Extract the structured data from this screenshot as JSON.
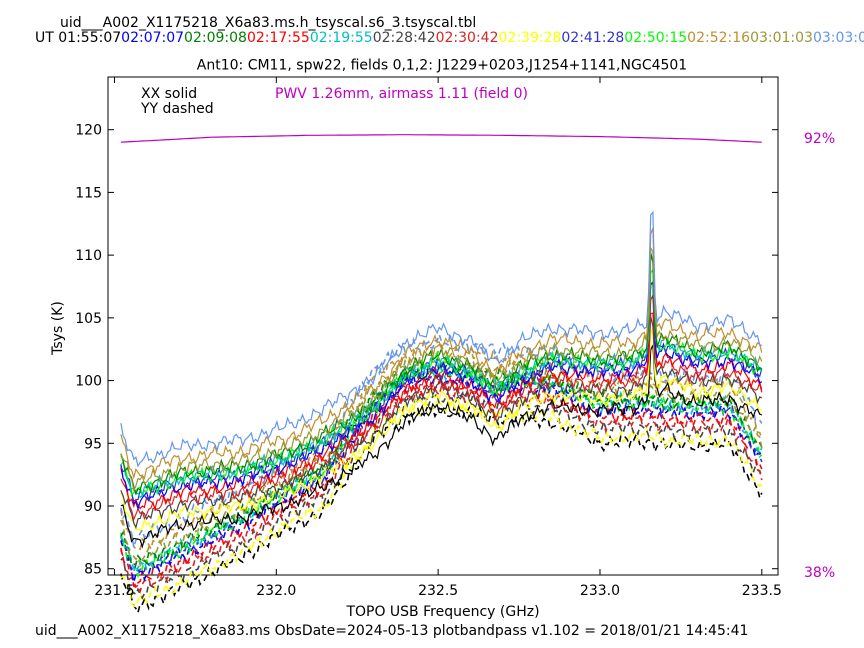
{
  "header": {
    "filename": "uid___A002_X1175218_X6a83.ms.h_tsyscal.s6_3.tsyscal.tbl",
    "ut_prefix": "UT",
    "times": [
      {
        "text": "01:55:07",
        "color": "#000000"
      },
      {
        "text": "02:07:07",
        "color": "#0000ff"
      },
      {
        "text": "02:09:08",
        "color": "#008000"
      },
      {
        "text": "02:17:55",
        "color": "#ff0000"
      },
      {
        "text": "02:19:55",
        "color": "#00bfbf"
      },
      {
        "text": "02:28:42",
        "color": "#444444"
      },
      {
        "text": "02:30:42",
        "color": "#d62728"
      },
      {
        "text": "02:39:28",
        "color": "#ffff00"
      },
      {
        "text": "02:41:28",
        "color": "#3333cc"
      },
      {
        "text": "02:50:15",
        "color": "#00ff00"
      },
      {
        "text": "02:52:16",
        "color": "#bf8f30"
      },
      {
        "text": "03:01:03",
        "color": "#999933"
      },
      {
        "text": "03:03:03",
        "color": "#6495ed"
      }
    ]
  },
  "chart_data": {
    "type": "line",
    "title": "Ant10: CM11,  spw22,  fields 0,1,2: J1229+0203,J1254+1141,NGC4501",
    "xlabel": "TOPO USB Frequency (GHz)",
    "ylabel": "Tsys (K)",
    "xlim": [
      231.48,
      233.55
    ],
    "ylim": [
      84.5,
      124.2
    ],
    "xticks": [
      231.5,
      232.0,
      232.5,
      233.0,
      233.5
    ],
    "xtick_labels": [
      "231.5",
      "232.0",
      "232.5",
      "233.0",
      "233.5"
    ],
    "yticks": [
      85,
      90,
      95,
      100,
      105,
      110,
      115,
      120
    ],
    "ytick_labels": [
      "85",
      "90",
      "95",
      "100",
      "105",
      "110",
      "115",
      "120"
    ],
    "legend": [
      "XX solid",
      "YY dashed"
    ],
    "pwv_label": "PWV 1.26mm, airmass 1.11 (field 0)",
    "pwv_color": "#bf00bf",
    "transmission_axis": {
      "top_label": "92%",
      "bottom_label": "38%"
    },
    "transmission_curve": {
      "x": [
        231.52,
        231.8,
        232.1,
        232.4,
        232.7,
        233.0,
        233.3,
        233.5
      ],
      "y": [
        119.0,
        119.4,
        119.55,
        119.6,
        119.55,
        119.45,
        119.25,
        119.0
      ]
    },
    "spectral_feature": {
      "x": 233.16,
      "solid_peak": 116.3,
      "dashed_peak": 100.9
    },
    "spectrum_shape": {
      "x": [
        231.52,
        231.56,
        231.7,
        231.9,
        232.05,
        232.15,
        232.3,
        232.4,
        232.5,
        232.6,
        232.68,
        232.75,
        232.85,
        233.0,
        233.1,
        233.2,
        233.3,
        233.4,
        233.5
      ],
      "solid": [
        0,
        -2.8,
        -1.5,
        -0.9,
        0.3,
        1.6,
        4.0,
        6.8,
        8.0,
        7.0,
        5.3,
        6.9,
        8.0,
        7.6,
        7.8,
        9.3,
        8.2,
        8.6,
        7.0
      ],
      "dashed": [
        -8.2,
        -11.0,
        -9.4,
        -6.8,
        -4.4,
        -3.2,
        2.6,
        4.4,
        4.8,
        4.5,
        4.1,
        4.1,
        3.9,
        2.2,
        2.4,
        2.1,
        2.0,
        2.1,
        -1.8
      ]
    },
    "series": [
      {
        "color": "#000000",
        "solid_offset": 90.0,
        "dashed_offset": 92.8
      },
      {
        "color": "#ffff00",
        "solid_offset": 90.9,
        "dashed_offset": 93.2
      },
      {
        "color": "#444444",
        "solid_offset": 91.6,
        "dashed_offset": 93.9
      },
      {
        "color": "#d62728",
        "solid_offset": 92.1,
        "dashed_offset": 94.4
      },
      {
        "color": "#ff0000",
        "solid_offset": 92.6,
        "dashed_offset": 94.9
      },
      {
        "color": "#0000ff",
        "solid_offset": 93.1,
        "dashed_offset": 95.4
      },
      {
        "color": "#3333cc",
        "solid_offset": 93.4,
        "dashed_offset": 95.6
      },
      {
        "color": "#00ff00",
        "solid_offset": 93.7,
        "dashed_offset": 95.9
      },
      {
        "color": "#00bfbf",
        "solid_offset": 93.8,
        "dashed_offset": 96.0
      },
      {
        "color": "#008000",
        "solid_offset": 94.1,
        "dashed_offset": 96.3
      },
      {
        "color": "#999933",
        "solid_offset": 94.5,
        "dashed_offset": 96.7
      },
      {
        "color": "#bf8f30",
        "solid_offset": 95.3,
        "dashed_offset": 97.6
      },
      {
        "color": "#6495ed",
        "solid_offset": 96.2,
        "dashed_offset": 98.3
      }
    ]
  },
  "footer": {
    "text": "uid___A002_X1175218_X6a83.ms  ObsDate=2024-05-13   plotbandpass v1.102 = 2018/01/21 14:45:41"
  }
}
